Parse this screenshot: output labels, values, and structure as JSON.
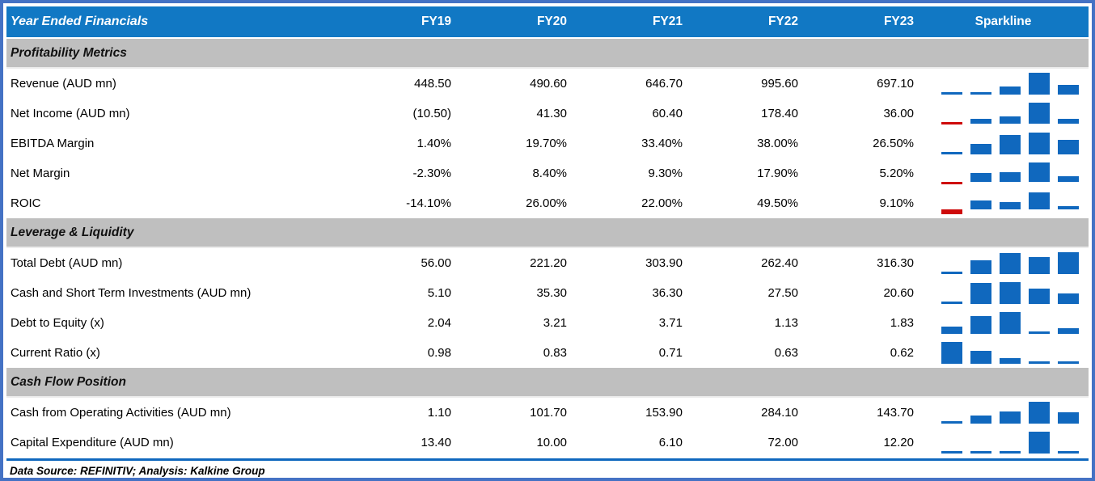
{
  "colors": {
    "frame_border": "#4472C4",
    "header_bg": "#1178C4",
    "header_text": "#ffffff",
    "section_bg": "#BFBFBF",
    "bar_positive": "#1068BE",
    "bar_negative": "#CE0A0A",
    "divider_blue": "#1068BE"
  },
  "table": {
    "header": {
      "label": "Year Ended Financials",
      "columns": [
        "FY19",
        "FY20",
        "FY21",
        "FY22",
        "FY23"
      ],
      "sparkline_label": "Sparkline"
    },
    "sections": [
      {
        "title": "Profitability Metrics",
        "rows": [
          {
            "label": "Revenue (AUD mn)",
            "values": [
              "448.50",
              "490.60",
              "646.70",
              "995.60",
              "697.10"
            ],
            "nums": [
              448.5,
              490.6,
              646.7,
              995.6,
              697.1
            ]
          },
          {
            "label": "Net Income (AUD mn)",
            "values": [
              "(10.50)",
              "41.30",
              "60.40",
              "178.40",
              "36.00"
            ],
            "nums": [
              -10.5,
              41.3,
              60.4,
              178.4,
              36.0
            ]
          },
          {
            "label": "EBITDA Margin",
            "values": [
              "1.40%",
              "19.70%",
              "33.40%",
              "38.00%",
              "26.50%"
            ],
            "nums": [
              1.4,
              19.7,
              33.4,
              38.0,
              26.5
            ]
          },
          {
            "label": "Net Margin",
            "values": [
              "-2.30%",
              "8.40%",
              "9.30%",
              "17.90%",
              "5.20%"
            ],
            "nums": [
              -2.3,
              8.4,
              9.3,
              17.9,
              5.2
            ]
          },
          {
            "label": "ROIC",
            "values": [
              "-14.10%",
              "26.00%",
              "22.00%",
              "49.50%",
              "9.10%"
            ],
            "nums": [
              -14.1,
              26.0,
              22.0,
              49.5,
              9.1
            ]
          }
        ]
      },
      {
        "title": "Leverage & Liquidity",
        "rows": [
          {
            "label": "Total Debt (AUD mn)",
            "values": [
              "56.00",
              "221.20",
              "303.90",
              "262.40",
              "316.30"
            ],
            "nums": [
              56.0,
              221.2,
              303.9,
              262.4,
              316.3
            ]
          },
          {
            "label": "Cash and Short Term Investments (AUD mn)",
            "values": [
              "5.10",
              "35.30",
              "36.30",
              "27.50",
              "20.60"
            ],
            "nums": [
              5.1,
              35.3,
              36.3,
              27.5,
              20.6
            ]
          },
          {
            "label": "Debt to Equity (x)",
            "values": [
              "2.04",
              "3.21",
              "3.71",
              "1.13",
              "1.83"
            ],
            "nums": [
              2.04,
              3.21,
              3.71,
              1.13,
              1.83
            ]
          },
          {
            "label": "Current Ratio (x)",
            "values": [
              "0.98",
              "0.83",
              "0.71",
              "0.63",
              "0.62"
            ],
            "nums": [
              0.98,
              0.83,
              0.71,
              0.63,
              0.62
            ]
          }
        ]
      },
      {
        "title": "Cash Flow Position",
        "rows": [
          {
            "label": "Cash from Operating Activities (AUD mn)",
            "values": [
              "1.10",
              "101.70",
              "153.90",
              "284.10",
              "143.70"
            ],
            "nums": [
              1.1,
              101.7,
              153.9,
              284.1,
              143.7
            ]
          },
          {
            "label": "Capital Expenditure (AUD mn)",
            "values": [
              "13.40",
              "10.00",
              "6.10",
              "72.00",
              "12.20"
            ],
            "nums": [
              13.4,
              10.0,
              6.1,
              72.0,
              12.2
            ]
          }
        ]
      }
    ],
    "footer": "Data Source: REFINITIV; Analysis: Kalkine Group"
  },
  "chart_data": {
    "type": "table",
    "title": "Year Ended Financials",
    "categories": [
      "FY19",
      "FY20",
      "FY21",
      "FY22",
      "FY23"
    ],
    "series": [
      {
        "name": "Revenue (AUD mn)",
        "values": [
          448.5,
          490.6,
          646.7,
          995.6,
          697.1
        ]
      },
      {
        "name": "Net Income (AUD mn)",
        "values": [
          -10.5,
          41.3,
          60.4,
          178.4,
          36.0
        ]
      },
      {
        "name": "EBITDA Margin (%)",
        "values": [
          1.4,
          19.7,
          33.4,
          38.0,
          26.5
        ]
      },
      {
        "name": "Net Margin (%)",
        "values": [
          -2.3,
          8.4,
          9.3,
          17.9,
          5.2
        ]
      },
      {
        "name": "ROIC (%)",
        "values": [
          -14.1,
          26.0,
          22.0,
          49.5,
          9.1
        ]
      },
      {
        "name": "Total Debt (AUD mn)",
        "values": [
          56.0,
          221.2,
          303.9,
          262.4,
          316.3
        ]
      },
      {
        "name": "Cash and Short Term Investments (AUD mn)",
        "values": [
          5.1,
          35.3,
          36.3,
          27.5,
          20.6
        ]
      },
      {
        "name": "Debt to Equity (x)",
        "values": [
          2.04,
          3.21,
          3.71,
          1.13,
          1.83
        ]
      },
      {
        "name": "Current Ratio (x)",
        "values": [
          0.98,
          0.83,
          0.71,
          0.63,
          0.62
        ]
      },
      {
        "name": "Cash from Operating Activities (AUD mn)",
        "values": [
          1.1,
          101.7,
          153.9,
          284.1,
          143.7
        ]
      },
      {
        "name": "Capital Expenditure (AUD mn)",
        "values": [
          13.4,
          10.0,
          6.1,
          72.0,
          12.2
        ]
      }
    ],
    "sparkline_type": "bar",
    "sparkline_scaling": "per-row min-max, negatives colored red",
    "legend_position": "none",
    "grid": false
  }
}
